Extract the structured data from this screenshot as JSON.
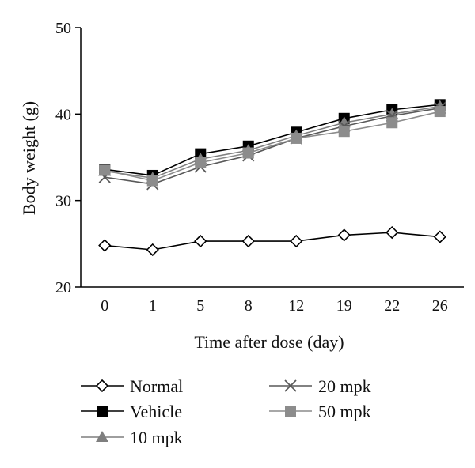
{
  "chart_data": {
    "type": "line",
    "title": "",
    "xlabel": "Time after dose (day)",
    "ylabel": "Body weight (g)",
    "categories": [
      "0",
      "1",
      "5",
      "8",
      "12",
      "19",
      "22",
      "26"
    ],
    "ylim": [
      20,
      50
    ],
    "yticks": [
      "20",
      "30",
      "40",
      "50"
    ],
    "grid": false,
    "legend_position": "bottom",
    "series": [
      {
        "name": "Normal",
        "marker": "diamond-open",
        "color": "#000000",
        "values": [
          24.8,
          24.3,
          25.3,
          25.3,
          25.3,
          26.0,
          26.3,
          25.8
        ]
      },
      {
        "name": "Vehicle",
        "marker": "square",
        "color": "#000000",
        "values": [
          33.6,
          32.9,
          35.4,
          36.3,
          37.9,
          39.5,
          40.5,
          41.1
        ]
      },
      {
        "name": "10 mpk",
        "marker": "triangle",
        "color": "#7f7f7f",
        "values": [
          33.4,
          32.6,
          34.8,
          35.8,
          37.5,
          39.0,
          40.0,
          40.9
        ]
      },
      {
        "name": "20 mpk",
        "marker": "cross",
        "color": "#595959",
        "values": [
          32.7,
          31.9,
          33.9,
          35.2,
          37.2,
          38.6,
          39.8,
          40.7
        ]
      },
      {
        "name": "50 mpk",
        "marker": "square",
        "color": "#8c8c8c",
        "values": [
          33.5,
          32.3,
          34.4,
          35.5,
          37.2,
          38.0,
          39.0,
          40.3
        ]
      }
    ]
  }
}
